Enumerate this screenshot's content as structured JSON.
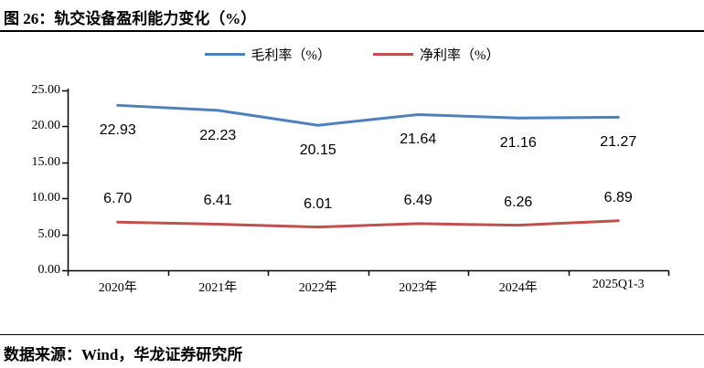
{
  "figure": {
    "title": "图 26：轨交设备盈利能力变化（%）",
    "source": "数据来源：Wind，华龙证券研究所"
  },
  "chart_data": {
    "type": "line",
    "title": "轨交设备盈利能力变化（%）",
    "categories": [
      "2020年",
      "2021年",
      "2022年",
      "2023年",
      "2024年",
      "2025Q1-3"
    ],
    "series": [
      {
        "name": "毛利率（%）",
        "color": "#4E80BC",
        "values": [
          22.93,
          22.23,
          20.15,
          21.64,
          21.16,
          21.27
        ],
        "data_label_position": "below"
      },
      {
        "name": "净利率（%）",
        "color": "#C0504D",
        "values": [
          6.7,
          6.41,
          6.01,
          6.49,
          6.26,
          6.89
        ],
        "data_label_position": "above"
      }
    ],
    "y_axis": {
      "min": 0,
      "max": 25,
      "step": 5,
      "tick_labels": [
        "0.00",
        "5.00",
        "10.00",
        "15.00",
        "20.00",
        "25.00"
      ]
    },
    "legend_position": "top",
    "grid": false,
    "axis_color": "#000000",
    "data_label_decimals": 2
  }
}
